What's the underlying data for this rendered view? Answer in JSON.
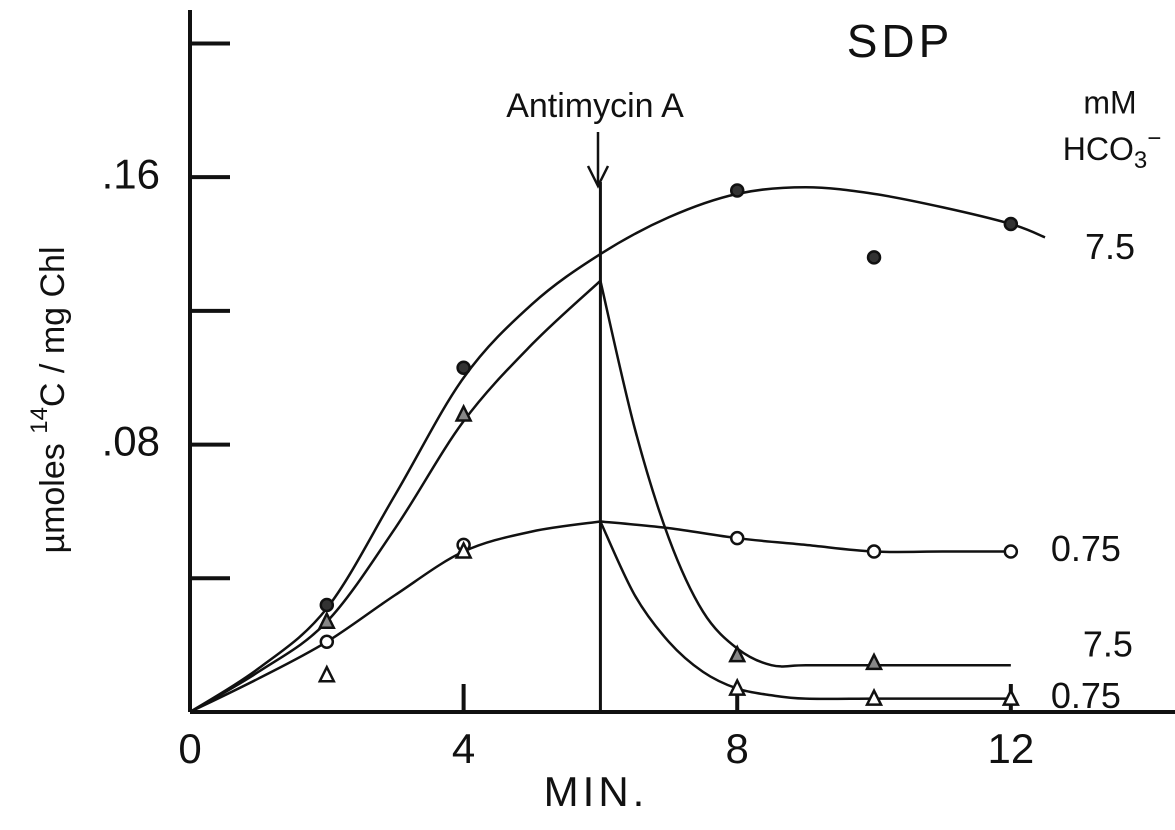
{
  "chart_data": {
    "type": "line",
    "title": "SDP",
    "xlabel": "MIN.",
    "ylabel_parts": [
      "µmoles ",
      "14",
      "C / mg Chl"
    ],
    "legend_title": "mM",
    "legend_unit_parts": [
      "HCO",
      "3",
      "−"
    ],
    "annotation": {
      "text": "Antimycin A",
      "x": 6
    },
    "xlim": [
      0,
      14.4
    ],
    "ylim": [
      0,
      0.213
    ],
    "xticks": [
      0,
      4,
      8,
      12
    ],
    "yticks": [
      {
        "value": 0.08,
        "label": ".08"
      },
      {
        "value": 0.16,
        "label": ".16"
      }
    ],
    "minor_yticks": [
      0.04,
      0.12,
      0.2
    ],
    "series": [
      {
        "name": "7.5",
        "marker": "circle",
        "fill": "#333333",
        "x": [
          2,
          4,
          8,
          10,
          12
        ],
        "values": [
          0.032,
          0.103,
          0.156,
          0.136,
          0.146
        ],
        "curves": [
          {
            "x": [
              0,
              1,
              2,
              3,
              4,
              5,
              6,
              7,
              8,
              9,
              10,
              11,
              12,
              12.5
            ],
            "values": [
              0,
              0.013,
              0.031,
              0.065,
              0.1,
              0.122,
              0.137,
              0.148,
              0.155,
              0.157,
              0.155,
              0.151,
              0.146,
              0.142
            ]
          }
        ]
      },
      {
        "name": "0.75",
        "marker": "circle",
        "fill": "#ffffff",
        "x": [
          2,
          4,
          8,
          10,
          12
        ],
        "values": [
          0.021,
          0.05,
          0.052,
          0.048,
          0.048
        ],
        "curves": [
          {
            "x": [
              0,
              1,
              2,
              3,
              4,
              5,
              6
            ],
            "values": [
              0,
              0.01,
              0.021,
              0.035,
              0.048,
              0.054,
              0.057
            ]
          },
          {
            "x": [
              6,
              7,
              8,
              9,
              10,
              11,
              12
            ],
            "values": [
              0.057,
              0.055,
              0.052,
              0.05,
              0.048,
              0.048,
              0.048
            ]
          }
        ]
      },
      {
        "name": "7.5",
        "marker": "triangle",
        "fill": "#888888",
        "x": [
          2,
          4,
          8,
          10
        ],
        "values": [
          0.027,
          0.089,
          0.017,
          0.0147
        ],
        "curves": [
          {
            "x": [
              0,
              1,
              2,
              3,
              4,
              5,
              6
            ],
            "values": [
              0,
              0.012,
              0.027,
              0.055,
              0.087,
              0.11,
              0.129
            ]
          },
          {
            "x": [
              6,
              6.5,
              7,
              7.5,
              8,
              8.5,
              9,
              10,
              11,
              12
            ],
            "values": [
              0.129,
              0.085,
              0.052,
              0.03,
              0.019,
              0.014,
              0.014,
              0.014,
              0.014,
              0.014
            ]
          }
        ]
      },
      {
        "name": "0.75",
        "marker": "triangle",
        "fill": "#ffffff",
        "x": [
          2,
          4,
          8,
          10,
          12
        ],
        "values": [
          0.011,
          0.048,
          0.007,
          0.004,
          0.004
        ],
        "curves": [
          {
            "x": [
              6,
              6.5,
              7,
              7.5,
              8,
              8.5,
              9,
              10,
              11,
              12
            ],
            "values": [
              0.057,
              0.035,
              0.021,
              0.012,
              0.007,
              0.005,
              0.004,
              0.004,
              0.004,
              0.004
            ]
          }
        ]
      }
    ]
  }
}
